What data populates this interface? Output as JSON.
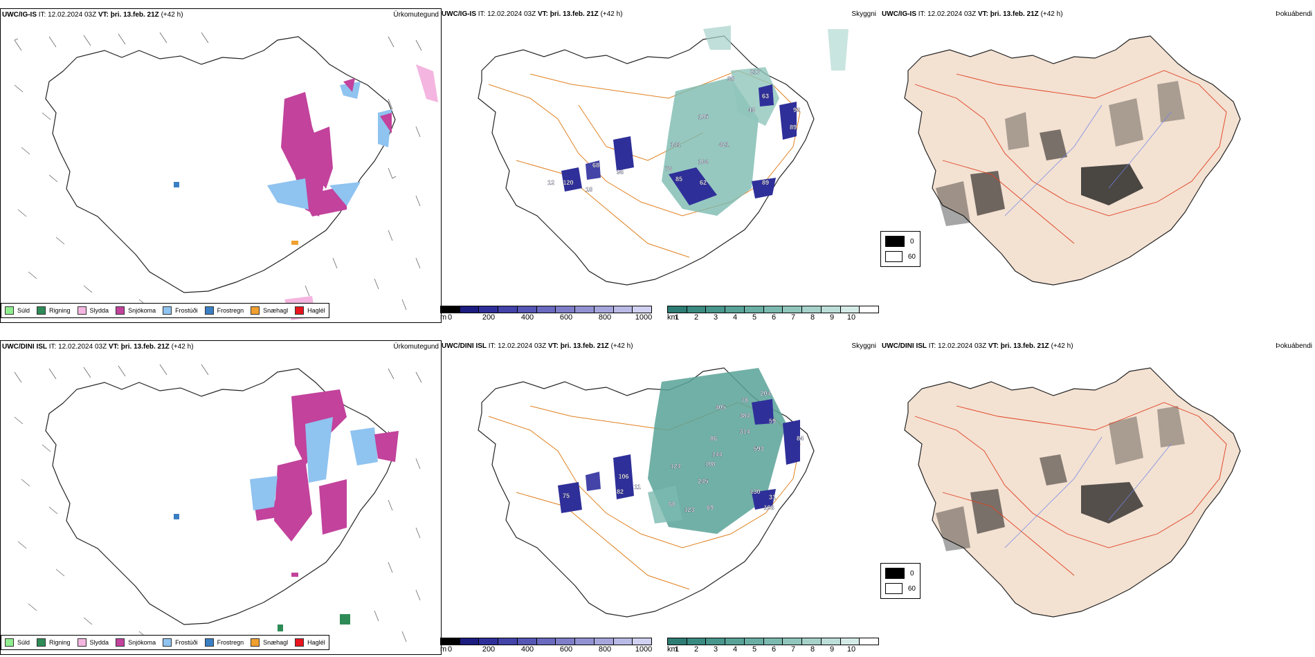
{
  "rows": [
    {
      "model": "UWC/IG-IS",
      "it_label": "IT:",
      "it_value": "12.02.2024 03Z",
      "vt_label": "VT:",
      "vt_value": "þri. 13.feb. 21Z",
      "lead": "(+42 h)"
    },
    {
      "model": "UWC/DINI ISL",
      "it_label": "IT:",
      "it_value": "12.02.2024 03Z",
      "vt_label": "VT:",
      "vt_value": "þri. 13.feb. 21Z",
      "lead": "(+42 h)"
    }
  ],
  "panel_titles": {
    "precip": "Úrkomutegund",
    "vis": "Skyggni",
    "fog": "Þokuábendi"
  },
  "precip_legend": [
    {
      "label": "Súld",
      "color": "#90ee90"
    },
    {
      "label": "Rigning",
      "color": "#2e8b57"
    },
    {
      "label": "Slydda",
      "color": "#f4b6e0"
    },
    {
      "label": "Snjókoma",
      "color": "#c2429c"
    },
    {
      "label": "Frostúði",
      "color": "#8fc3f0"
    },
    {
      "label": "Frostregn",
      "color": "#3a7fc4"
    },
    {
      "label": "Snæhagl",
      "color": "#f0a030"
    },
    {
      "label": "Haglél",
      "color": "#e8141e"
    }
  ],
  "height_bar": {
    "unit": "m",
    "ticks": [
      "0",
      "200",
      "400",
      "600",
      "800",
      "1000"
    ],
    "colors": [
      "#000000",
      "#1c1c80",
      "#2f2f9a",
      "#4343a8",
      "#5656b4",
      "#6a6abe",
      "#7e7ec8",
      "#9292d2",
      "#a6a6dc",
      "#babae6",
      "#d0d0f0"
    ]
  },
  "vis_bar": {
    "unit": "km",
    "ticks": [
      "1",
      "2",
      "3",
      "4",
      "5",
      "6",
      "7",
      "8",
      "9",
      "10"
    ],
    "colors": [
      "#2e7d74",
      "#3a8a80",
      "#48968c",
      "#58a298",
      "#6aaea4",
      "#7cbab0",
      "#90c6bc",
      "#a6d2ca",
      "#bcded8",
      "#d4eae6",
      "#ffffff"
    ]
  },
  "fog_legend": [
    {
      "label": "0",
      "color": "#000000"
    },
    {
      "label": "60",
      "color": "#ffffff"
    }
  ],
  "vis_labels": [
    [
      "217",
      "38",
      "63",
      "43",
      "93",
      "89",
      "105",
      "421",
      "164",
      "141",
      "76",
      "96",
      "68",
      "120",
      "85",
      "62",
      "89",
      "18",
      "12"
    ],
    [
      "204",
      "78",
      "384",
      "405",
      "59",
      "314",
      "86",
      "593",
      "144",
      "108",
      "245",
      "124",
      "106",
      "82",
      "11",
      "75",
      "60",
      "123",
      "69",
      "108",
      "130",
      "31",
      "84"
    ]
  ]
}
